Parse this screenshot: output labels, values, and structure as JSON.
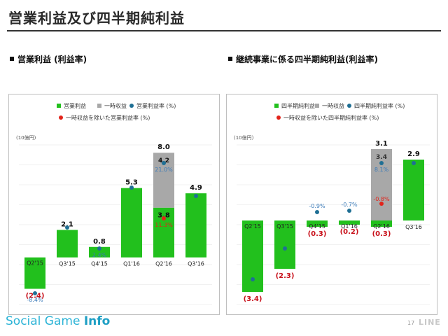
{
  "page": {
    "title": "営業利益及び四半期純利益",
    "page_number": "17",
    "brand_light": "Social Game ",
    "brand_bold": "Info",
    "logo": "LINE"
  },
  "colors": {
    "green": "#22c01d",
    "gray": "#a8a8a8",
    "rate_dot": "#1f6f94",
    "rate_label": "#3a7ab8",
    "adjusted_dot": "#e2231a",
    "adjusted_label": "#e2231a",
    "negative_label": "#c8101a"
  },
  "chart_data": [
    {
      "type": "bar",
      "title": "営業利益 (利益率)",
      "unit_label": "(10億円)",
      "legend": [
        {
          "label": "営業利益",
          "kind": "square",
          "color": "#22c01d"
        },
        {
          "label": "一時収益",
          "kind": "square",
          "color": "#a8a8a8"
        },
        {
          "label": "営業利益率 (%)",
          "kind": "dot",
          "color": "#1f6f94"
        },
        {
          "label": "一時収益を除いた営業利益率 (%)",
          "kind": "dot",
          "color": "#e2231a"
        }
      ],
      "categories": [
        "Q2'15",
        "Q3'15",
        "Q4'15",
        "Q1'16",
        "Q2'16",
        "Q3'16"
      ],
      "series": [
        {
          "name": "営業利益",
          "values": [
            -2.4,
            2.1,
            0.8,
            5.3,
            3.8,
            4.9
          ],
          "labels": [
            "(2.4)",
            "2.1",
            "0.8",
            "5.3",
            "3.8",
            "4.9"
          ]
        },
        {
          "name": "一時収益",
          "values": [
            0,
            0,
            0,
            0,
            4.2,
            0
          ],
          "labels": [
            "",
            "",
            "",
            "",
            "4.2",
            ""
          ]
        }
      ],
      "totals": [
        "",
        "",
        "",
        "",
        "8.0",
        ""
      ],
      "rates": [
        -8.4,
        7.0,
        2.4,
        17.0,
        21.0,
        18.0
      ],
      "rate_labels": [
        "-8.4%",
        "",
        "2.4%",
        "",
        "21.0%",
        ""
      ],
      "adjusted_rates": [
        null,
        null,
        null,
        null,
        11.3,
        null
      ],
      "adjusted_rate_labels": [
        "",
        "",
        "",
        "",
        "11.3%",
        ""
      ],
      "ylim": [
        -3.6,
        8.6
      ]
    },
    {
      "type": "bar",
      "title": "継続事業に係る四半期純利益(利益率)",
      "unit_label": "(10億円)",
      "legend": [
        {
          "label": "四半期純利益",
          "kind": "square",
          "color": "#22c01d"
        },
        {
          "label": "一時収益",
          "kind": "square",
          "color": "#a8a8a8"
        },
        {
          "label": "四半期純利益率 (%)",
          "kind": "dot",
          "color": "#1f6f94"
        },
        {
          "label": "一時収益を除いた四半期純利益率 (%)",
          "kind": "dot",
          "color": "#e2231a"
        }
      ],
      "categories": [
        "Q2'15",
        "Q3'15",
        "Q4'15",
        "Q1'16",
        "Q2'16",
        "Q3'16"
      ],
      "series": [
        {
          "name": "四半期純利益",
          "values": [
            -3.4,
            -2.3,
            -0.3,
            -0.2,
            -0.3,
            2.9
          ],
          "labels": [
            "(3.4)",
            "(2.3)",
            "(0.3)",
            "(0.2)",
            "(0.3)",
            "2.9"
          ]
        },
        {
          "name": "一時収益",
          "values": [
            0,
            0,
            0,
            0,
            3.4,
            0
          ],
          "labels": [
            "",
            "",
            "",
            "",
            "3.4",
            ""
          ]
        }
      ],
      "totals": [
        "",
        "",
        "",
        "",
        "3.1",
        ""
      ],
      "rates": [
        -12.0,
        -8.0,
        -0.9,
        -0.7,
        8.1,
        10.5
      ],
      "rate_labels": [
        "",
        "",
        "-0.9%",
        "-0.7%",
        "8.1%",
        ""
      ],
      "adjusted_rates": [
        null,
        null,
        null,
        null,
        -0.8,
        null
      ],
      "adjusted_rate_labels": [
        "",
        "",
        "",
        "",
        "-0.8%",
        ""
      ],
      "ylim": [
        -4.0,
        3.6
      ]
    }
  ]
}
